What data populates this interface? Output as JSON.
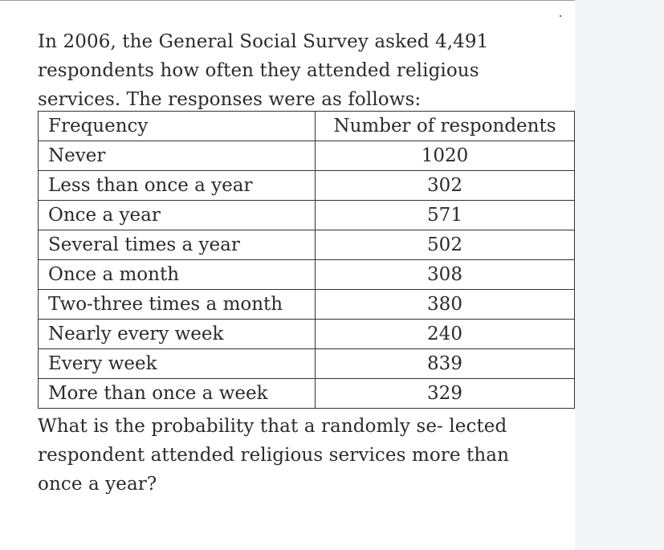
{
  "intro_text": "In 2006, the General Social Survey asked 4,491 respondents how often they attended religious services. The responses were as follows:",
  "table": {
    "headers": [
      "Frequency",
      "Number of respondents"
    ],
    "rows": [
      {
        "frequency": "Never",
        "count": "1020"
      },
      {
        "frequency": "Less than once a year",
        "count": "302"
      },
      {
        "frequency": "Once a year",
        "count": "571"
      },
      {
        "frequency": "Several times a year",
        "count": "502"
      },
      {
        "frequency": "Once a month",
        "count": "308"
      },
      {
        "frequency": "Two-three times a month",
        "count": "380"
      },
      {
        "frequency": "Nearly every week",
        "count": "240"
      },
      {
        "frequency": "Every week",
        "count": "839"
      },
      {
        "frequency": "More than once a week",
        "count": "329"
      }
    ]
  },
  "question_text": "What is the probability that a randomly se- lected respondent attended religious services more than once a year?"
}
